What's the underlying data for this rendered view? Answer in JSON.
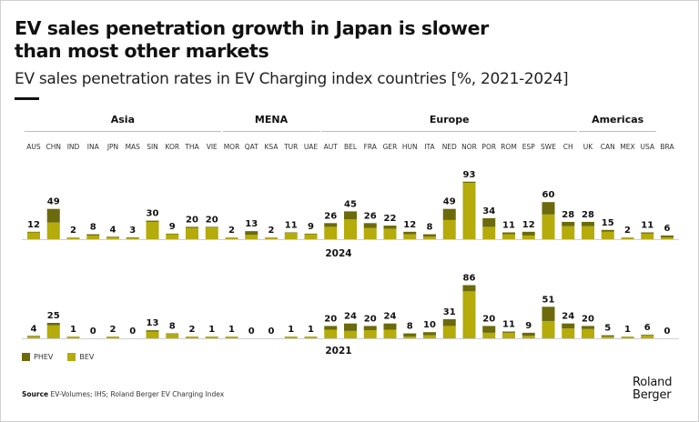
{
  "title": "EV sales penetration growth in Japan is slower than most other markets",
  "title_lines": [
    "EV sales penetration growth in Japan is slower",
    "than most other markets"
  ],
  "subtitle": "EV sales penetration rates in EV Charging index countries [%, 2021-2024]",
  "regions": [
    {
      "name": "Asia",
      "count": 10
    },
    {
      "name": "MENA",
      "count": 5
    },
    {
      "name": "Europe",
      "count": 13
    },
    {
      "name": "Americas",
      "count": 4
    }
  ],
  "legend": [
    {
      "label": "PHEV",
      "color": "#6b6a0c"
    },
    {
      "label": "BEV",
      "color": "#b5ab0a"
    }
  ],
  "source_label": "Source",
  "source_text": "EV-Volumes; IHS; Roland Berger EV Charging Index",
  "logo_lines": [
    "Roland",
    "Berger"
  ],
  "chart_data": {
    "type": "bar",
    "stacked": true,
    "title": "EV sales penetration rates in EV Charging index countries [%, 2021-2024]",
    "xlabel": "",
    "ylabel": "%",
    "categories": [
      "AUS",
      "CHN",
      "IND",
      "INA",
      "JPN",
      "MAS",
      "SIN",
      "KOR",
      "THA",
      "VIE",
      "MOR",
      "QAT",
      "KSA",
      "TUR",
      "UAE",
      "AUT",
      "BEL",
      "FRA",
      "GER",
      "HUN",
      "ITA",
      "NED",
      "NOR",
      "POR",
      "ROM",
      "ESP",
      "SWE",
      "CH",
      "UK",
      "CAN",
      "MEX",
      "USA",
      "BRA"
    ],
    "panels": [
      {
        "year": "2024",
        "totals": [
          12,
          49,
          2,
          8,
          4,
          3,
          30,
          9,
          20,
          20,
          2,
          13,
          2,
          11,
          9,
          26,
          45,
          26,
          22,
          12,
          8,
          49,
          93,
          34,
          11,
          12,
          60,
          28,
          28,
          15,
          2,
          11,
          6
        ],
        "series": [
          {
            "name": "BEV",
            "values": [
              11,
              27,
              1,
              6,
              3,
              2,
              28,
              8,
              18,
              19,
              1,
              7,
              1,
              10,
              8,
              20,
              32,
              18,
              17,
              8,
              4,
              31,
              91,
              20,
              8,
              6,
              40,
              21,
              21,
              12,
              1,
              9,
              3
            ]
          },
          {
            "name": "PHEV",
            "values": [
              1,
              22,
              1,
              2,
              1,
              1,
              2,
              1,
              2,
              1,
              1,
              6,
              1,
              1,
              1,
              6,
              13,
              8,
              5,
              4,
              4,
              18,
              2,
              14,
              3,
              6,
              20,
              7,
              7,
              3,
              1,
              2,
              3
            ]
          }
        ]
      },
      {
        "year": "2021",
        "totals": [
          4,
          25,
          1,
          0,
          2,
          0,
          13,
          8,
          2,
          1,
          1,
          0,
          0,
          1,
          1,
          20,
          24,
          20,
          24,
          8,
          10,
          31,
          86,
          20,
          11,
          9,
          51,
          24,
          20,
          5,
          1,
          6,
          0
        ],
        "series": [
          {
            "name": "BEV",
            "values": [
              3,
              21,
              1,
              0,
              1,
              0,
              11,
              7,
              1,
              1,
              1,
              0,
              0,
              1,
              1,
              14,
              12,
              13,
              14,
              3,
              5,
              20,
              76,
              9,
              9,
              4,
              28,
              16,
              15,
              3,
              1,
              5,
              0
            ]
          },
          {
            "name": "PHEV",
            "values": [
              1,
              4,
              0,
              0,
              1,
              0,
              2,
              1,
              1,
              0,
              0,
              0,
              0,
              0,
              0,
              6,
              12,
              7,
              10,
              5,
              5,
              11,
              10,
              11,
              2,
              5,
              23,
              8,
              5,
              2,
              0,
              1,
              0
            ]
          }
        ]
      }
    ],
    "ylim": [
      0,
      100
    ],
    "grid": false,
    "legend_position": "bottom-left"
  }
}
